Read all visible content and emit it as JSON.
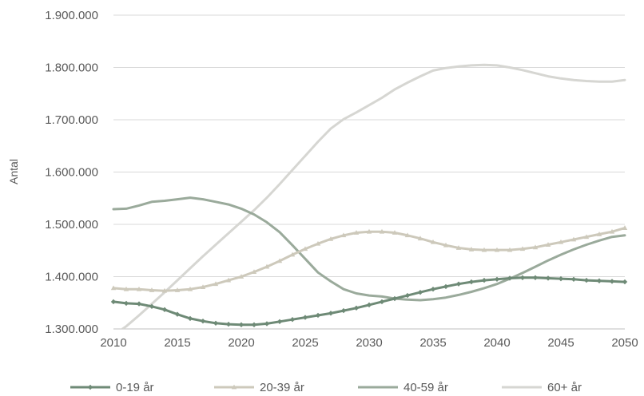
{
  "chart_data": {
    "type": "line",
    "ylabel": "Antal",
    "xlabel": "",
    "xlim": [
      2010,
      2050
    ],
    "ylim": [
      1300000,
      1900000
    ],
    "x_ticks": [
      "2010",
      "2015",
      "2020",
      "2025",
      "2030",
      "2035",
      "2040",
      "2045",
      "2050"
    ],
    "y_ticks": [
      "1.300.000",
      "1.400.000",
      "1.500.000",
      "1.600.000",
      "1.700.000",
      "1.800.000",
      "1.900.000"
    ],
    "grid": "horizontal",
    "legend_position": "bottom",
    "x": [
      2010,
      2011,
      2012,
      2013,
      2014,
      2015,
      2016,
      2017,
      2018,
      2019,
      2020,
      2021,
      2022,
      2023,
      2024,
      2025,
      2026,
      2027,
      2028,
      2029,
      2030,
      2031,
      2032,
      2033,
      2034,
      2035,
      2036,
      2037,
      2038,
      2039,
      2040,
      2041,
      2042,
      2043,
      2044,
      2045,
      2046,
      2047,
      2048,
      2049,
      2050
    ],
    "series": [
      {
        "name": "0-19 år",
        "color": "#6e8a76",
        "marker": "diamond",
        "values": [
          1352000,
          1349000,
          1348000,
          1343000,
          1337000,
          1328000,
          1320000,
          1315000,
          1311000,
          1309000,
          1308000,
          1308000,
          1310000,
          1314000,
          1318000,
          1322000,
          1326000,
          1330000,
          1335000,
          1340000,
          1346000,
          1352000,
          1358000,
          1364000,
          1370000,
          1376000,
          1381000,
          1386000,
          1390000,
          1393000,
          1395000,
          1397000,
          1398000,
          1398000,
          1397000,
          1396000,
          1395000,
          1393000,
          1392000,
          1391000,
          1390000
        ]
      },
      {
        "name": "20-39 år",
        "color": "#cdc9bb",
        "marker": "triangle",
        "values": [
          1378000,
          1376000,
          1376000,
          1374000,
          1373000,
          1374000,
          1376000,
          1380000,
          1386000,
          1393000,
          1400000,
          1409000,
          1419000,
          1430000,
          1442000,
          1453000,
          1463000,
          1472000,
          1479000,
          1484000,
          1486000,
          1486000,
          1484000,
          1479000,
          1473000,
          1466000,
          1460000,
          1455000,
          1452000,
          1451000,
          1451000,
          1451000,
          1453000,
          1456000,
          1461000,
          1466000,
          1471000,
          1476000,
          1481000,
          1486000,
          1493000
        ]
      },
      {
        "name": "40-59 år",
        "color": "#9aaa9b",
        "marker": "none",
        "values": [
          1529000,
          1530000,
          1536000,
          1543000,
          1545000,
          1548000,
          1551000,
          1548000,
          1543000,
          1538000,
          1530000,
          1519000,
          1504000,
          1485000,
          1460000,
          1434000,
          1408000,
          1391000,
          1376000,
          1368000,
          1364000,
          1362000,
          1358000,
          1356000,
          1355000,
          1357000,
          1360000,
          1365000,
          1371000,
          1378000,
          1386000,
          1396000,
          1407000,
          1419000,
          1431000,
          1442000,
          1452000,
          1461000,
          1469000,
          1476000,
          1479000
        ]
      },
      {
        "name": "60+ år",
        "color": "#d6d6d2",
        "marker": "none",
        "values": [
          1288000,
          1305000,
          1326000,
          1348000,
          1370000,
          1393000,
          1416000,
          1439000,
          1461000,
          1483000,
          1505000,
          1527000,
          1551000,
          1577000,
          1604000,
          1631000,
          1658000,
          1683000,
          1701000,
          1714000,
          1728000,
          1742000,
          1758000,
          1771000,
          1783000,
          1794000,
          1799000,
          1802000,
          1804000,
          1805000,
          1804000,
          1800000,
          1795000,
          1789000,
          1783000,
          1779000,
          1776000,
          1774000,
          1773000,
          1773000,
          1776000
        ]
      }
    ]
  }
}
